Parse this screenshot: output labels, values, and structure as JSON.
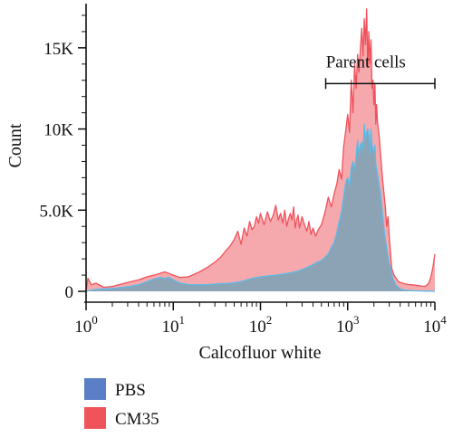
{
  "chart_data": {
    "type": "area",
    "x_scale": "log",
    "xlim": [
      1,
      10000
    ],
    "ylim": [
      0,
      17500
    ],
    "grid": false,
    "legend_position": "bottom-left",
    "xlabel": "Calcofluor white",
    "ylabel": "Count",
    "x_ticks": [
      {
        "value": 1,
        "base": "10",
        "exp": "0"
      },
      {
        "value": 10,
        "base": "10",
        "exp": "1"
      },
      {
        "value": 100,
        "base": "10",
        "exp": "2"
      },
      {
        "value": 1000,
        "base": "10",
        "exp": "3"
      },
      {
        "value": 10000,
        "base": "10",
        "exp": "4"
      }
    ],
    "y_ticks": [
      {
        "value": 0,
        "label": "0"
      },
      {
        "value": 5000,
        "label": "5.0K"
      },
      {
        "value": 10000,
        "label": "10K"
      },
      {
        "value": 15000,
        "label": "15K"
      }
    ],
    "gate": {
      "label": "Parent cells",
      "x_start": 560,
      "x_end": 10000,
      "y": 12800
    },
    "series": [
      {
        "name": "CM35",
        "color": "#f0525c",
        "fill": "#f6a9ad",
        "x": [
          1,
          1.05,
          1.15,
          1.3,
          1.6,
          2,
          3,
          4,
          5,
          6,
          7,
          8,
          9,
          10,
          12,
          15,
          20,
          25,
          30,
          35,
          40,
          45,
          50,
          55,
          60,
          65,
          70,
          75,
          80,
          85,
          90,
          95,
          100,
          110,
          120,
          130,
          140,
          150,
          160,
          170,
          180,
          190,
          200,
          210,
          220,
          230,
          240,
          250,
          260,
          270,
          280,
          300,
          320,
          340,
          360,
          380,
          400,
          430,
          460,
          500,
          550,
          600,
          650,
          700,
          750,
          800,
          850,
          900,
          950,
          1000,
          1050,
          1100,
          1150,
          1200,
          1250,
          1300,
          1350,
          1400,
          1450,
          1500,
          1550,
          1600,
          1650,
          1700,
          1750,
          1800,
          1850,
          1900,
          1950,
          2000,
          2050,
          2100,
          2150,
          2200,
          2300,
          2400,
          2500,
          2600,
          2700,
          2800,
          2900,
          3000,
          3200,
          3400,
          3600,
          3800,
          4000,
          4300,
          4600,
          5000,
          5500,
          6000,
          6500,
          7000,
          7500,
          8000,
          8500,
          9000,
          9500,
          10000
        ],
        "values": [
          0,
          800,
          400,
          500,
          250,
          300,
          550,
          700,
          900,
          1000,
          1100,
          1200,
          1100,
          1000,
          850,
          900,
          1200,
          1500,
          1800,
          2100,
          2500,
          2800,
          3200,
          3700,
          2900,
          3900,
          3400,
          4300,
          3800,
          4000,
          4600,
          4200,
          4800,
          4100,
          4900,
          4300,
          4700,
          5300,
          4400,
          4800,
          4200,
          5000,
          4000,
          4500,
          4800,
          4400,
          5200,
          3900,
          4400,
          4700,
          3900,
          4600,
          4100,
          3700,
          4300,
          3500,
          3900,
          3400,
          3800,
          4100,
          4900,
          5800,
          5200,
          6000,
          6600,
          7500,
          6900,
          8900,
          9900,
          10900,
          9800,
          13000,
          11000,
          14000,
          12500,
          14600,
          13500,
          15000,
          16200,
          14500,
          16800,
          15200,
          17400,
          13800,
          16000,
          14000,
          15500,
          12500,
          13000,
          11500,
          12800,
          10300,
          11500,
          10400,
          9500,
          8300,
          7000,
          6100,
          5200,
          4000,
          4600,
          3300,
          1400,
          1000,
          800,
          600,
          550,
          500,
          450,
          420,
          400,
          380,
          350,
          330,
          300,
          350,
          500,
          900,
          1500,
          2300
        ]
      },
      {
        "name": "PBS",
        "color": "#5bbbe8",
        "fill": "#7fa2b6",
        "x": [
          1,
          1.3,
          2,
          3,
          4,
          5,
          6,
          7,
          8,
          9,
          10,
          12,
          15,
          20,
          25,
          30,
          40,
          50,
          60,
          70,
          80,
          100,
          120,
          150,
          200,
          250,
          300,
          350,
          400,
          450,
          500,
          550,
          600,
          650,
          700,
          750,
          800,
          850,
          900,
          950,
          1000,
          1050,
          1100,
          1150,
          1200,
          1250,
          1300,
          1350,
          1400,
          1450,
          1500,
          1550,
          1600,
          1650,
          1700,
          1750,
          1800,
          1850,
          1900,
          1950,
          2000,
          2050,
          2100,
          2200,
          2300,
          2400,
          2500,
          2600,
          2800,
          3000,
          3300,
          3600,
          4000,
          4500,
          5000,
          6000,
          7000,
          8000,
          9000,
          10000
        ],
        "values": [
          0,
          120,
          180,
          280,
          400,
          600,
          750,
          850,
          800,
          850,
          700,
          500,
          420,
          400,
          420,
          450,
          480,
          520,
          600,
          700,
          800,
          900,
          950,
          1000,
          1100,
          1200,
          1350,
          1500,
          1650,
          1800,
          1900,
          2100,
          2300,
          2700,
          3000,
          3600,
          4300,
          4900,
          5800,
          6700,
          7000,
          6500,
          7600,
          8000,
          7400,
          8300,
          9300,
          8500,
          9000,
          9200,
          8700,
          10300,
          9300,
          9800,
          10000,
          9600,
          8500,
          10000,
          9000,
          8700,
          8600,
          9000,
          7800,
          7200,
          6500,
          5900,
          4800,
          3900,
          2600,
          1700,
          800,
          350,
          150,
          80,
          50,
          30,
          20,
          10,
          10,
          0
        ]
      }
    ]
  },
  "legend": [
    {
      "label": "PBS",
      "color": "#5a7fc6"
    },
    {
      "label": "CM35",
      "color": "#ef545b"
    }
  ]
}
